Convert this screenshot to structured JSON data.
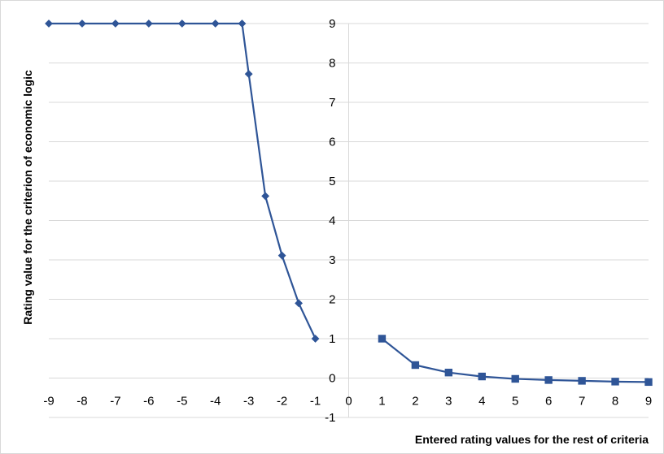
{
  "chart_data": {
    "type": "line",
    "title": "",
    "xlabel": "Entered rating values for the rest of criteria",
    "ylabel": "Rating value for the criterion of economic logic",
    "xlim": [
      -9,
      9
    ],
    "ylim": [
      -1,
      9
    ],
    "x_ticks": [
      "-9",
      "-8",
      "-7",
      "-6",
      "-5",
      "-4",
      "-3",
      "-2",
      "-1",
      "0",
      "1",
      "2",
      "3",
      "4",
      "5",
      "6",
      "7",
      "8",
      "9"
    ],
    "y_ticks": [
      "-1",
      "0",
      "1",
      "2",
      "3",
      "4",
      "5",
      "6",
      "7",
      "8",
      "9"
    ],
    "grid": "horizontal",
    "legend": "none",
    "series": [
      {
        "marker": "diamond",
        "color": "#2f5597",
        "x": [
          -9,
          -8,
          -7,
          -6,
          -5,
          -4,
          -3.2,
          -3,
          -2.5,
          -2,
          -1.5,
          -1
        ],
        "y": [
          9,
          9,
          9,
          9,
          9,
          9,
          9,
          7.72,
          4.62,
          3.11,
          1.9,
          1.0
        ]
      },
      {
        "marker": "square",
        "color": "#2f5597",
        "x": [
          1,
          2,
          3,
          4,
          5,
          6,
          7,
          8,
          9
        ],
        "y": [
          1.0,
          0.33,
          0.14,
          0.04,
          -0.02,
          -0.05,
          -0.07,
          -0.09,
          -0.1
        ]
      }
    ]
  }
}
